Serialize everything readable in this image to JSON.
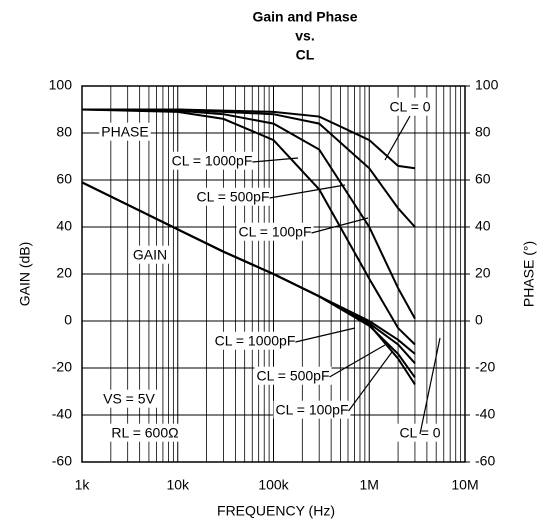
{
  "chart_data": {
    "type": "line",
    "title": [
      "Gain and Phase",
      "vs.",
      "CL"
    ],
    "x_label": "FREQUENCY (Hz)",
    "y_label": "GAIN (dB)",
    "y2_label": "PHASE (°)",
    "x_scale": "log",
    "xlim": [
      1000,
      10000000
    ],
    "xticks": [
      {
        "value": 1000,
        "label": "1k"
      },
      {
        "value": 10000,
        "label": "10k"
      },
      {
        "value": 100000,
        "label": "100k"
      },
      {
        "value": 1000000,
        "label": "1M"
      },
      {
        "value": 10000000,
        "label": "10M"
      }
    ],
    "ylim": [
      -60,
      100
    ],
    "yticks": [
      -60,
      -40,
      -20,
      0,
      20,
      40,
      60,
      80,
      100
    ],
    "y2lim": [
      -60,
      100
    ],
    "y2ticks": [
      -60,
      -40,
      -20,
      0,
      20,
      40,
      60,
      80,
      100
    ],
    "grid": true,
    "color": "#000000",
    "x": [
      1000,
      10000,
      30000,
      100000,
      300000,
      1000000,
      2000000,
      3000000
    ],
    "series": [
      {
        "name": "CL = 0",
        "axis": "y2",
        "values": [
          90,
          90,
          89.5,
          89,
          87,
          77,
          66,
          65
        ]
      },
      {
        "name": "CL = 1000pF",
        "axis": "y2",
        "values": [
          90,
          89,
          86,
          77,
          56,
          18,
          -3,
          -10
        ]
      },
      {
        "name": "CL = 500pF",
        "axis": "y2",
        "values": [
          90,
          89.5,
          88,
          84,
          73,
          40,
          14,
          1
        ]
      },
      {
        "name": "CL = 100pF",
        "axis": "y2",
        "values": [
          90,
          90,
          89,
          88,
          84,
          65,
          48,
          40
        ]
      },
      {
        "name": "CL = 1000pF",
        "axis": "y",
        "values": [
          59,
          39,
          29.5,
          20,
          10.5,
          -1,
          -10,
          -18
        ]
      },
      {
        "name": "CL = 500pF",
        "axis": "y",
        "values": [
          59,
          39,
          29.5,
          20,
          10.5,
          -2,
          -14,
          -24
        ]
      },
      {
        "name": "CL = 100pF",
        "axis": "y",
        "values": [
          59,
          39,
          29.5,
          20,
          10.5,
          -1.5,
          -16,
          -27
        ]
      },
      {
        "name": "CL = 0",
        "axis": "y",
        "values": [
          59,
          39,
          29.5,
          20,
          10.5,
          0,
          -8,
          -14
        ]
      }
    ],
    "annotations": [
      "PHASE",
      "GAIN",
      "VS = 5V",
      "RL = 600Ω"
    ]
  }
}
